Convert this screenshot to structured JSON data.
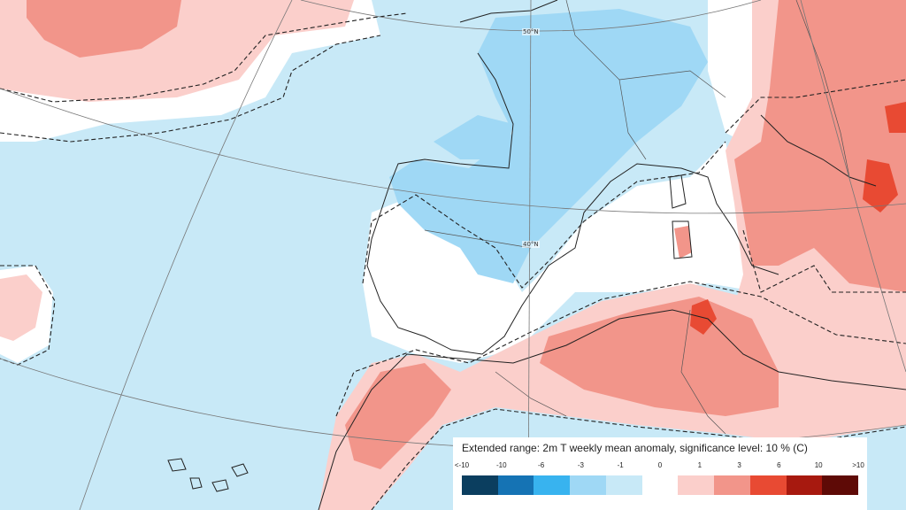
{
  "map": {
    "latitude_labels": [
      "50°N",
      "40°N"
    ]
  },
  "legend": {
    "title": "Extended range: 2m T weekly mean anomaly, significance level: 10 % (C)",
    "ticks": [
      "<-10",
      "-10",
      "-6",
      "-3",
      "-1",
      "0",
      "1",
      "3",
      "6",
      "10",
      ">10"
    ],
    "colors": [
      "#0b3e5f",
      "#1573b4",
      "#38b3ef",
      "#9fd8f5",
      "#c8e9f7",
      "#ffffff",
      "#fbcfcb",
      "#f2958a",
      "#e84a33",
      "#a7190f",
      "#5e0a06"
    ]
  }
}
